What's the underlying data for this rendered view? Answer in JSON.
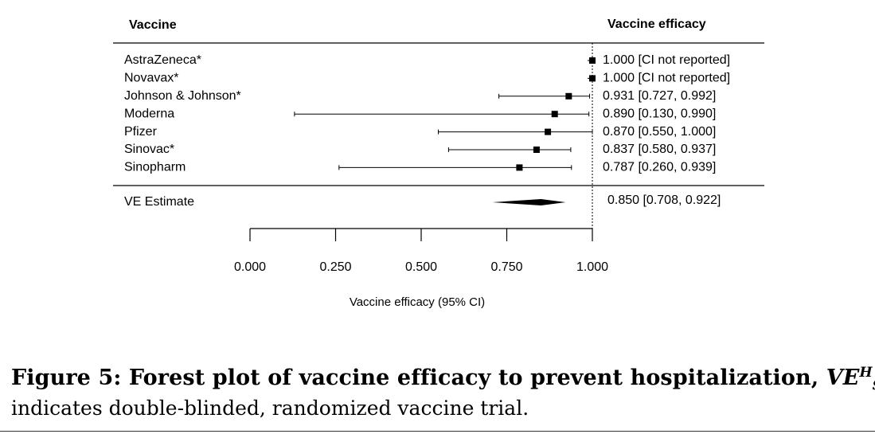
{
  "chart_data": {
    "type": "forest",
    "header_left": "Vaccine",
    "header_right": "Vaccine efficacy",
    "rows": [
      {
        "name": "AstraZeneca*",
        "estimate": 1.0,
        "lower": null,
        "upper": null,
        "label": "1.000 [CI not reported]"
      },
      {
        "name": "Novavax*",
        "estimate": 1.0,
        "lower": null,
        "upper": null,
        "label": "1.000 [CI not reported]"
      },
      {
        "name": "Johnson & Johnson*",
        "estimate": 0.931,
        "lower": 0.727,
        "upper": 0.992,
        "label": "0.931 [0.727, 0.992]"
      },
      {
        "name": "Moderna",
        "estimate": 0.89,
        "lower": 0.13,
        "upper": 0.99,
        "label": "0.890 [0.130, 0.990]"
      },
      {
        "name": "Pfizer",
        "estimate": 0.87,
        "lower": 0.55,
        "upper": 1.0,
        "label": "0.870 [0.550, 1.000]"
      },
      {
        "name": "Sinovac*",
        "estimate": 0.837,
        "lower": 0.58,
        "upper": 0.937,
        "label": "0.837 [0.580, 0.937]"
      },
      {
        "name": "Sinopharm",
        "estimate": 0.787,
        "lower": 0.26,
        "upper": 0.939,
        "label": "0.787 [0.260, 0.939]"
      }
    ],
    "summary": {
      "name": "VE Estimate",
      "estimate": 0.85,
      "lower": 0.708,
      "upper": 0.922,
      "label": "0.850 [0.708, 0.922]"
    },
    "xlim": [
      0.0,
      1.0
    ],
    "reference_line": 1.0,
    "ticks": [
      0.0,
      0.25,
      0.5,
      0.75,
      1.0
    ],
    "tick_labels": [
      "0.000",
      "0.250",
      "0.500",
      "0.750",
      "1.000"
    ],
    "xlabel": "Vaccine efficacy (95% CI)"
  },
  "caption": {
    "bold_text": "Figure 5: Forest plot of vaccine efficacy to prevent hospitalization, ",
    "math_base": "VE",
    "math_sup": "H",
    "math_sub": "SP",
    "after_math": ". *",
    "line2": "indicates double-blinded, randomized vaccine trial."
  }
}
